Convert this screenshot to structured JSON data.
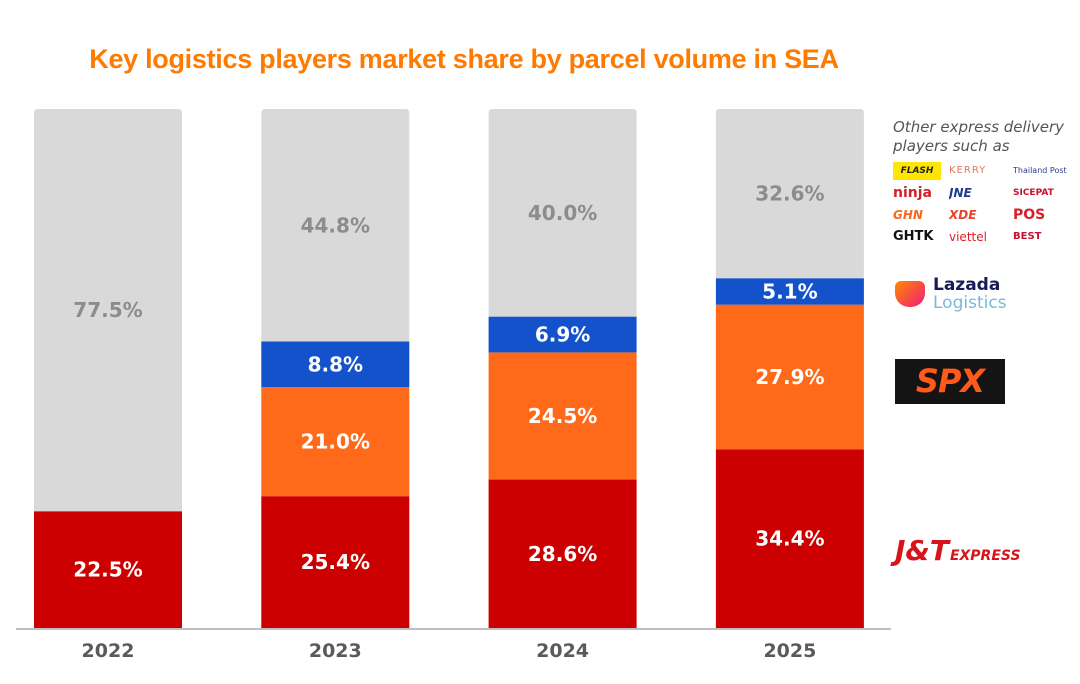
{
  "chart_data": {
    "type": "bar",
    "stacked": true,
    "title": "Key logistics players market share by parcel volume in SEA",
    "xlabel": "",
    "ylabel": "",
    "ylim": [
      0,
      100
    ],
    "unit": "%",
    "grid": false,
    "categories": [
      "2022",
      "2023",
      "2024",
      "2025"
    ],
    "series": [
      {
        "name": "J&T Express",
        "color": "#cc0000",
        "label_color": "#ffffff",
        "values": [
          22.5,
          25.4,
          28.6,
          34.4
        ],
        "labels": [
          "22.5%",
          "25.4%",
          "28.6%",
          "34.4%"
        ]
      },
      {
        "name": "SPX Express",
        "color": "#ff6a1a",
        "label_color": "#ffffff",
        "values": [
          null,
          21.0,
          24.5,
          27.9
        ],
        "labels": [
          "",
          "21.0%",
          "24.5%",
          "27.9%"
        ]
      },
      {
        "name": "Lazada Logistics",
        "color": "#1452cc",
        "label_color": "#ffffff",
        "values": [
          null,
          8.8,
          6.9,
          5.1
        ],
        "labels": [
          "",
          "8.8%",
          "6.9%",
          "5.1%"
        ]
      },
      {
        "name": "Other express delivery players",
        "color": "#d9d9d9",
        "label_color": "#8c8c8c",
        "values": [
          77.5,
          44.8,
          40.0,
          32.6
        ],
        "labels": [
          "77.5%",
          "44.8%",
          "40.0%",
          "32.6%"
        ]
      }
    ],
    "legend": "right"
  },
  "legend": {
    "other_title": "Other express delivery players such as",
    "other_logos": [
      "FLASH",
      "KERRY",
      "Thailand Post",
      "ninja",
      "JNE",
      "SICEPAT",
      "GHN",
      "XDE",
      "POS",
      "GHTK",
      "viettel",
      "BEST"
    ],
    "lazada_line1": "Lazada",
    "lazada_line2": "Logistics",
    "spx": "SPX",
    "jnt": "J&T",
    "jnt_sub": "EXPRESS"
  },
  "colors": {
    "title": "#ff7a00",
    "axis": "#bfbfbf",
    "year_label": "#5a5a5a"
  }
}
